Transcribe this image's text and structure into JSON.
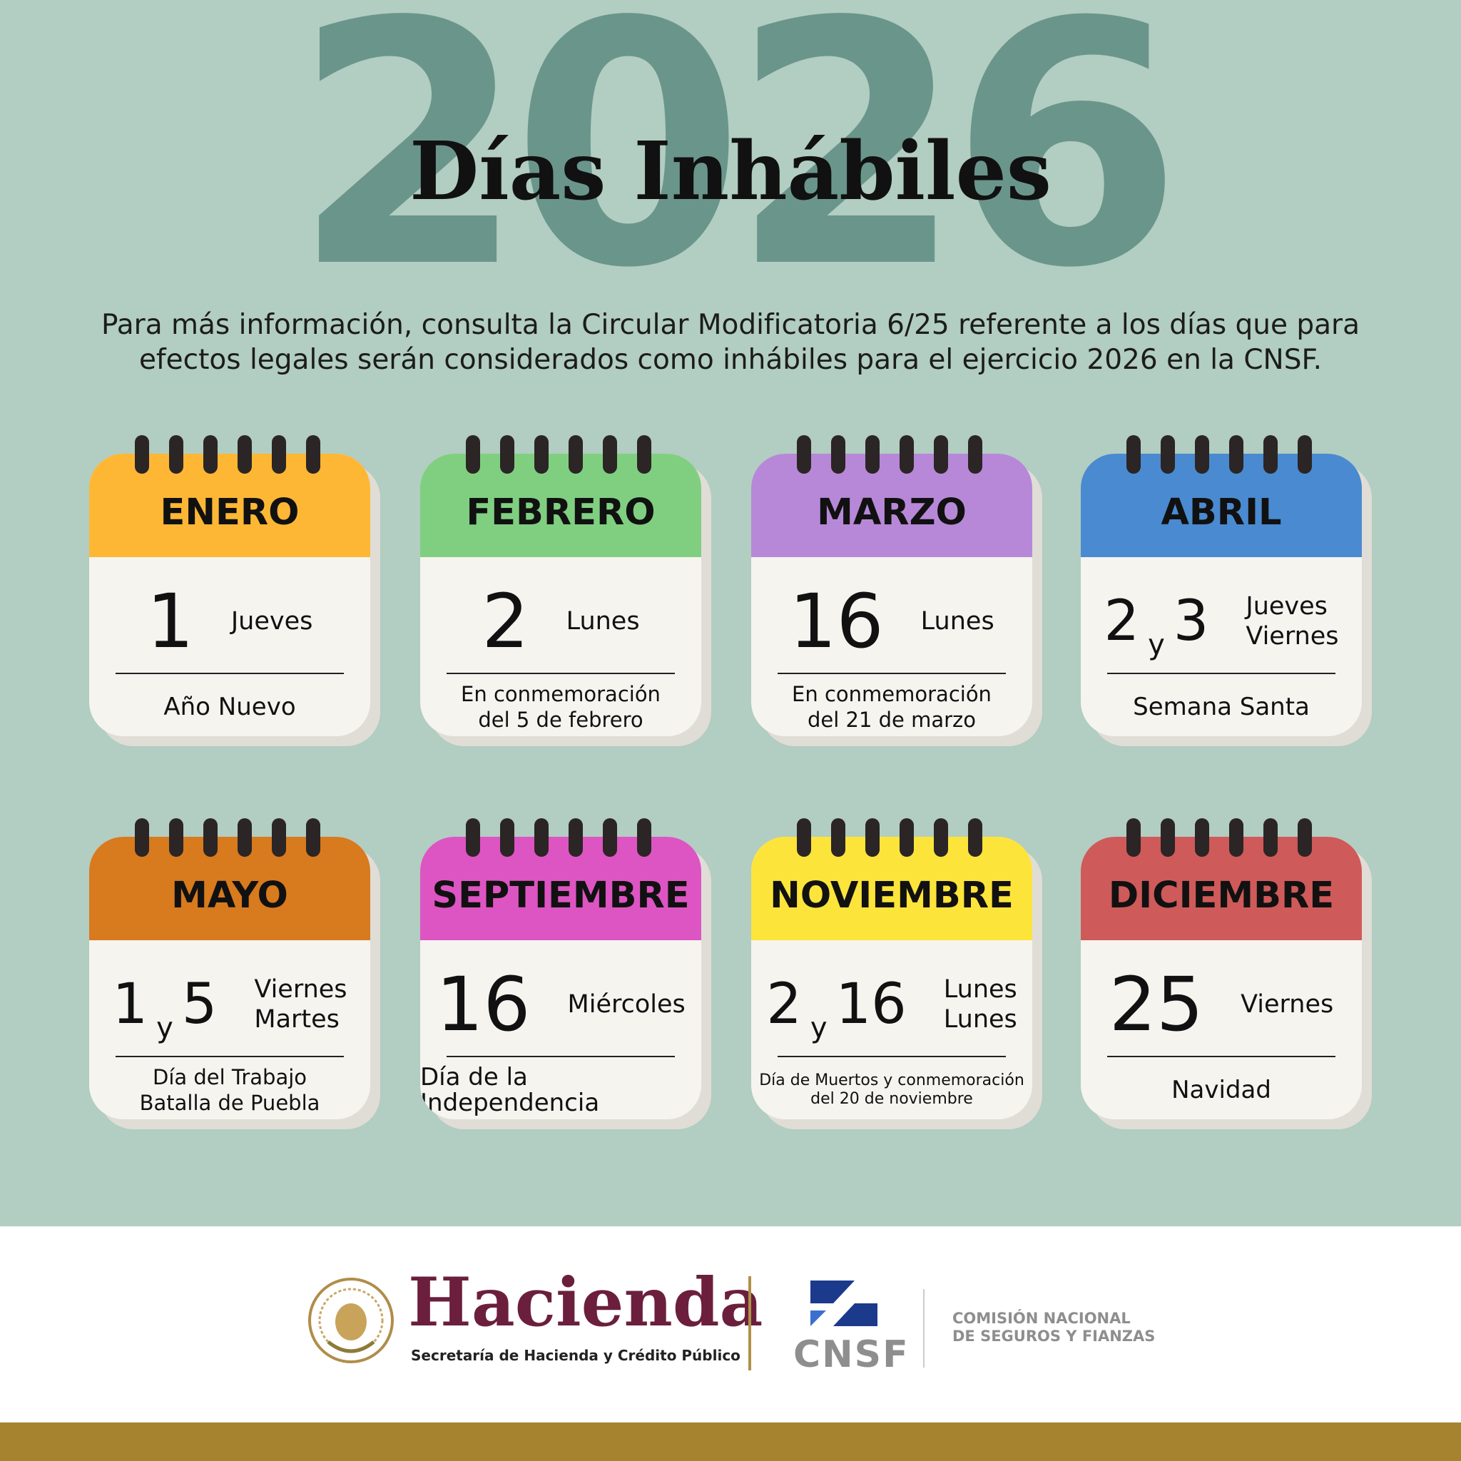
{
  "header": {
    "year": "2026",
    "title": "Días Inhábiles",
    "intro": [
      "Para más información, consulta la Circular Modificatoria 6/25 referente a los días que para",
      "efectos legales serán considerados como inhábiles para el ejercicio 2026 en la CNSF."
    ]
  },
  "cards": [
    {
      "month": "ENERO",
      "color": "#fdb735",
      "days": [
        "1"
      ],
      "weekdays": [
        "Jueves"
      ],
      "note": [
        "Año Nuevo"
      ]
    },
    {
      "month": "FEBRERO",
      "color": "#80cf81",
      "days": [
        "2"
      ],
      "weekdays": [
        "Lunes"
      ],
      "note": [
        "En conmemoración",
        "del 5 de febrero"
      ]
    },
    {
      "month": "MARZO",
      "color": "#b788d8",
      "days": [
        "16"
      ],
      "weekdays": [
        "Lunes"
      ],
      "note": [
        "En conmemoración",
        "del 21 de marzo"
      ]
    },
    {
      "month": "ABRIL",
      "color": "#4a8ad0",
      "days": [
        "2",
        "3"
      ],
      "joiner": "y",
      "weekdays": [
        "Jueves",
        "Viernes"
      ],
      "note": [
        "Semana Santa"
      ]
    },
    {
      "month": "MAYO",
      "color": "#d87a1e",
      "days": [
        "1",
        "5"
      ],
      "joiner": "y",
      "weekdays": [
        "Viernes",
        "Martes"
      ],
      "note": [
        "Día del Trabajo",
        "Batalla de Puebla"
      ]
    },
    {
      "month": "SEPTIEMBRE",
      "color": "#dd55c2",
      "days": [
        "16"
      ],
      "weekdays": [
        "Miércoles"
      ],
      "note": [
        "Día de la Independencia"
      ]
    },
    {
      "month": "NOVIEMBRE",
      "color": "#fde43a",
      "days": [
        "2",
        "16"
      ],
      "joiner": "y",
      "weekdays": [
        "Lunes",
        "Lunes"
      ],
      "note": [
        "Día de Muertos y conmemoración",
        "del 20 de noviembre"
      ]
    },
    {
      "month": "DICIEMBRE",
      "color": "#cf5a5a",
      "days": [
        "25"
      ],
      "weekdays": [
        "Viernes"
      ],
      "note": [
        "Navidad"
      ]
    }
  ],
  "footer": {
    "hacienda": "Hacienda",
    "hacienda_subtitle": "Secretaría de Hacienda y Crédito Público",
    "cnsf": "CNSF",
    "cnsf_name": [
      "COMISIÓN NACIONAL",
      "DE SEGUROS Y FIANZAS"
    ]
  }
}
